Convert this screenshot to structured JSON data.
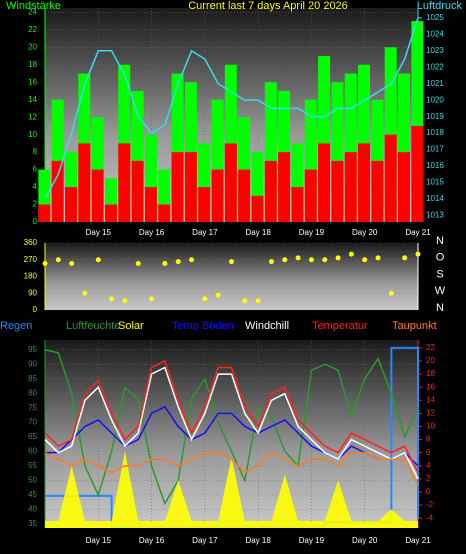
{
  "chart_data": [
    {
      "type": "combo",
      "title": "Current last 7 days April 20 2026",
      "ylabel": "Windstärke",
      "y2label": "Luftdruck",
      "x": [
        14,
        14.25,
        14.5,
        14.75,
        15,
        15.25,
        15.5,
        15.75,
        16,
        16.25,
        16.5,
        16.75,
        17,
        17.25,
        17.5,
        17.75,
        18,
        18.25,
        18.5,
        18.75,
        19,
        19.25,
        19.5,
        19.75,
        20,
        20.25,
        20.5,
        20.75,
        21
      ],
      "xlim": [
        14,
        21
      ],
      "xticks": [
        {
          "value": 15,
          "label": "Day 15"
        },
        {
          "value": 16,
          "label": "Day 16"
        },
        {
          "value": 17,
          "label": "Day 17"
        },
        {
          "value": 18,
          "label": "Day 18"
        },
        {
          "value": 19,
          "label": "Day 19"
        },
        {
          "value": 20,
          "label": "Day 20"
        },
        {
          "value": 21,
          "label": "Day 21"
        }
      ],
      "ylim": [
        0,
        24.5
      ],
      "yticks": [
        0,
        2,
        4,
        6,
        8,
        10,
        12,
        14,
        16,
        18,
        20,
        22,
        24
      ],
      "y2lim": [
        1012.6,
        1025.6
      ],
      "y2ticks": [
        1013,
        1014,
        1015,
        1016,
        1017,
        1018,
        1019,
        1020,
        1021,
        1022,
        1023,
        1024,
        1025
      ],
      "grid": true,
      "series": [
        {
          "kind": "bar",
          "color": "#00ff00",
          "values": [
            6,
            14,
            8,
            17,
            12,
            5,
            18,
            15,
            10,
            6,
            17,
            16,
            9,
            14,
            18,
            12,
            8,
            16,
            15,
            9,
            14,
            19,
            16,
            17,
            18,
            14,
            20,
            17,
            23
          ]
        },
        {
          "kind": "bar",
          "color": "#ff0000",
          "values": [
            2,
            7,
            4,
            9,
            6,
            2,
            9,
            7,
            4,
            2,
            8,
            8,
            4,
            6,
            9,
            6,
            3,
            7,
            8,
            4,
            6,
            9,
            7,
            8,
            9,
            7,
            10,
            8,
            11
          ]
        },
        {
          "kind": "line",
          "axis": "y2",
          "color": "#33ddee",
          "values": [
            1014,
            1015.5,
            1018,
            1021,
            1023,
            1023,
            1021.5,
            1019,
            1018,
            1018.5,
            1021,
            1023,
            1022.5,
            1021,
            1020.5,
            1020,
            1020,
            1019.5,
            1019.5,
            1019.5,
            1019,
            1019,
            1019.5,
            1019.5,
            1020,
            1020.5,
            1021,
            1022.5,
            1025
          ]
        }
      ]
    },
    {
      "type": "combo",
      "compass": [
        "N",
        "W",
        "S",
        "O",
        "N"
      ],
      "x": [
        14,
        14.25,
        14.5,
        14.75,
        15,
        15.25,
        15.5,
        15.75,
        16,
        16.25,
        16.5,
        16.75,
        17,
        17.25,
        17.5,
        17.75,
        18,
        18.25,
        18.5,
        18.75,
        19,
        19.25,
        19.5,
        19.75,
        20,
        20.25,
        20.5,
        20.75,
        21
      ],
      "xlim": [
        14,
        21
      ],
      "ylim": [
        0,
        360
      ],
      "yticks": [
        0,
        90,
        180,
        270,
        360
      ],
      "grid": true,
      "series": [
        {
          "kind": "scatter",
          "color": "#ffff00",
          "values": [
            250,
            270,
            250,
            90,
            270,
            60,
            50,
            250,
            60,
            250,
            260,
            270,
            60,
            80,
            260,
            50,
            50,
            260,
            270,
            280,
            270,
            270,
            280,
            300,
            270,
            280,
            90,
            280,
            300
          ]
        }
      ]
    },
    {
      "type": "combo",
      "x": [
        14,
        14.25,
        14.5,
        14.75,
        15,
        15.25,
        15.5,
        15.75,
        16,
        16.25,
        16.5,
        16.75,
        17,
        17.25,
        17.5,
        17.75,
        18,
        18.25,
        18.5,
        18.75,
        19,
        19.25,
        19.5,
        19.75,
        20,
        20.25,
        20.5,
        20.75,
        21
      ],
      "xlim": [
        14,
        21
      ],
      "xticks": [
        {
          "value": 15,
          "label": "Day 15"
        },
        {
          "value": 16,
          "label": "Day 16"
        },
        {
          "value": 17,
          "label": "Day 17"
        },
        {
          "value": 18,
          "label": "Day 18"
        },
        {
          "value": 19,
          "label": "Day 19"
        },
        {
          "value": 20,
          "label": "Day 20"
        },
        {
          "value": 21,
          "label": "Day 21"
        }
      ],
      "ylim": [
        33.6,
        98.4
      ],
      "yticks": [
        35,
        40,
        45,
        50,
        55,
        60,
        65,
        70,
        75,
        80,
        85,
        90,
        95
      ],
      "y2lim": [
        -5.5,
        23.2
      ],
      "y2ticks": [
        -4,
        -2,
        0,
        2,
        4,
        6,
        8,
        10,
        12,
        14,
        16,
        18,
        20,
        22
      ],
      "grid": true,
      "series": [
        {
          "name": "Regen",
          "kind": "step",
          "axis": "y2",
          "color": "#1e8cff",
          "values": [
            -0.6,
            -0.6,
            -0.6,
            -0.6,
            -0.6,
            -5.3,
            -5.3,
            -5.3,
            -5.3,
            -5.3,
            -5.3,
            -5.3,
            -5.3,
            -5.3,
            -5.3,
            -5.3,
            -5.3,
            -5.3,
            -5.3,
            -5.3,
            -5.3,
            -4.6,
            -4.6,
            -4.6,
            -4.6,
            -4.6,
            22,
            22,
            -4
          ]
        },
        {
          "name": "Luftfeuchte",
          "kind": "line",
          "color": "#2a9a2a",
          "values": [
            95,
            94,
            80,
            55,
            45,
            60,
            82,
            78,
            55,
            42,
            50,
            78,
            85,
            70,
            60,
            50,
            75,
            72,
            60,
            55,
            88,
            90,
            88,
            72,
            85,
            92,
            80,
            65,
            75
          ]
        },
        {
          "name": "Solar",
          "kind": "area",
          "color": "#ffff00",
          "values": [
            36,
            36,
            55,
            36,
            36,
            36,
            60,
            36,
            36,
            36,
            50,
            36,
            36,
            36,
            58,
            36,
            36,
            36,
            52,
            36,
            36,
            36,
            50,
            36,
            36,
            36,
            40,
            36,
            36
          ]
        },
        {
          "name": "Temp Boden",
          "kind": "line",
          "axis": "y2",
          "color": "#1010ff",
          "values": [
            6,
            6,
            8,
            10,
            11,
            9,
            7,
            8,
            12,
            13,
            10,
            8,
            9,
            12,
            12,
            10,
            9,
            10,
            11,
            9,
            7,
            6,
            5,
            7,
            6,
            5,
            5,
            6,
            4
          ]
        },
        {
          "name": "Windchill",
          "kind": "line",
          "axis": "y2",
          "color": "#ffffff",
          "values": [
            8,
            6,
            7,
            14,
            16,
            11,
            7,
            9,
            18,
            19,
            13,
            8,
            12,
            18,
            18,
            12,
            9,
            14,
            15,
            10,
            8,
            6,
            5,
            8,
            7,
            6,
            5,
            6,
            2
          ]
        },
        {
          "name": "Temperatur",
          "kind": "line",
          "axis": "y2",
          "color": "#ff2020",
          "values": [
            9,
            7,
            8,
            15,
            17,
            12,
            8,
            10,
            19,
            20,
            14,
            9,
            13,
            19,
            19,
            13,
            10,
            15,
            16,
            11,
            9,
            7,
            6,
            9,
            8,
            7,
            6,
            7,
            3
          ]
        },
        {
          "name": "Taupunkt",
          "kind": "line",
          "axis": "y2",
          "color": "#ff7a20",
          "values": [
            6,
            5,
            4,
            5,
            4,
            3,
            4,
            4,
            5,
            5,
            4,
            5,
            6,
            6,
            5,
            3,
            4,
            6,
            5,
            4,
            5,
            5,
            4,
            6,
            6,
            5,
            5,
            5,
            1
          ]
        }
      ]
    }
  ]
}
